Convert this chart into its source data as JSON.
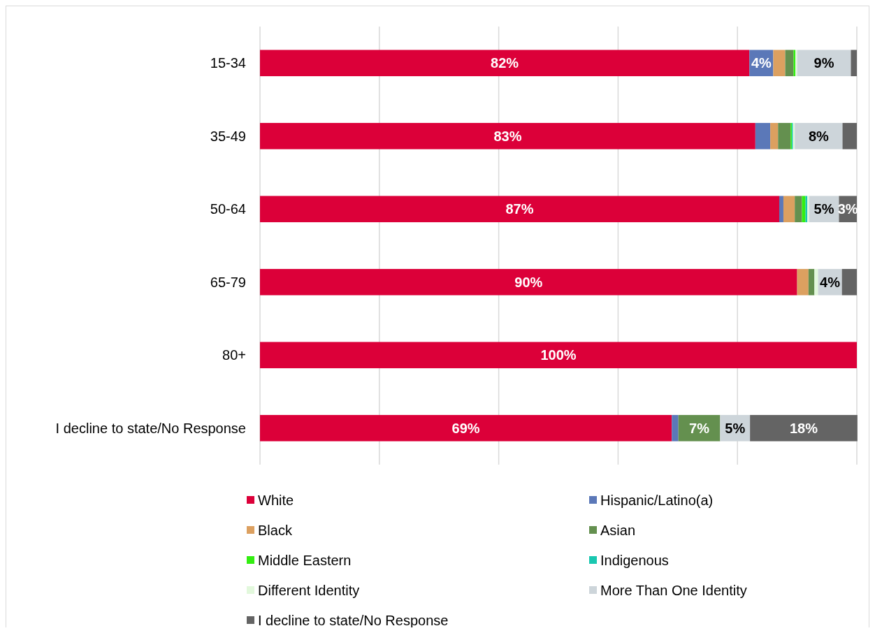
{
  "chart_data": {
    "type": "bar",
    "orientation": "horizontal",
    "stacked": true,
    "categories": [
      "15-34",
      "35-49",
      "50-64",
      "65-79",
      "80+",
      "I decline to state/No Response"
    ],
    "series": [
      {
        "name": "White",
        "color": "#dc0039",
        "values": [
          82,
          83,
          87,
          90,
          100,
          69
        ],
        "value_labels": [
          "82%",
          "83%",
          "87%",
          "90%",
          "100%",
          "69%"
        ]
      },
      {
        "name": "Hispanic/Latino(a)",
        "color": "#5b78b8",
        "values": [
          4,
          2.5,
          0.7,
          null,
          null,
          1.1
        ],
        "value_labels": [
          "4%",
          null,
          null,
          null,
          null,
          null
        ]
      },
      {
        "name": "Black",
        "color": "#dca060",
        "values": [
          2,
          1.3,
          1.9,
          1.9,
          null,
          null
        ]
      },
      {
        "name": "Asian",
        "color": "#64904f",
        "values": [
          1.4,
          2.1,
          1.2,
          1,
          null,
          7
        ],
        "value_labels": [
          null,
          null,
          null,
          null,
          null,
          "7%"
        ]
      },
      {
        "name": "Middle Eastern",
        "color": "#33ee11",
        "values": [
          0.3,
          0.2,
          0.6,
          null,
          null,
          null
        ]
      },
      {
        "name": "Indigenous",
        "color": "#19c7b0",
        "values": [
          null,
          0.2,
          0.3,
          null,
          null,
          null
        ]
      },
      {
        "name": "Different Identity",
        "color": "#e2f8dc",
        "values": [
          0.3,
          0.3,
          0.3,
          0.6,
          null,
          null
        ]
      },
      {
        "name": "More Than One Identity",
        "color": "#cdd5da",
        "values": [
          9,
          8,
          5,
          4,
          null,
          5
        ],
        "value_labels": [
          "9%",
          "8%",
          "5%",
          "4%",
          null,
          "5%"
        ]
      },
      {
        "name": "I decline to state/No Response",
        "color": "#646464",
        "values": [
          1,
          2.4,
          3,
          2.5,
          null,
          18
        ],
        "value_labels": [
          null,
          null,
          "3%",
          null,
          null,
          "18%"
        ]
      }
    ],
    "xlim": [
      0,
      100
    ],
    "xticks": [
      {
        "value": 0,
        "label": null
      },
      {
        "value": 20,
        "label": null
      },
      {
        "value": 40,
        "label": null
      },
      {
        "value": 60,
        "label": null
      },
      {
        "value": 80,
        "label": null
      },
      {
        "value": 100,
        "label": null
      }
    ],
    "grid": "x",
    "legend": "bottom",
    "tick_labels": "y"
  }
}
